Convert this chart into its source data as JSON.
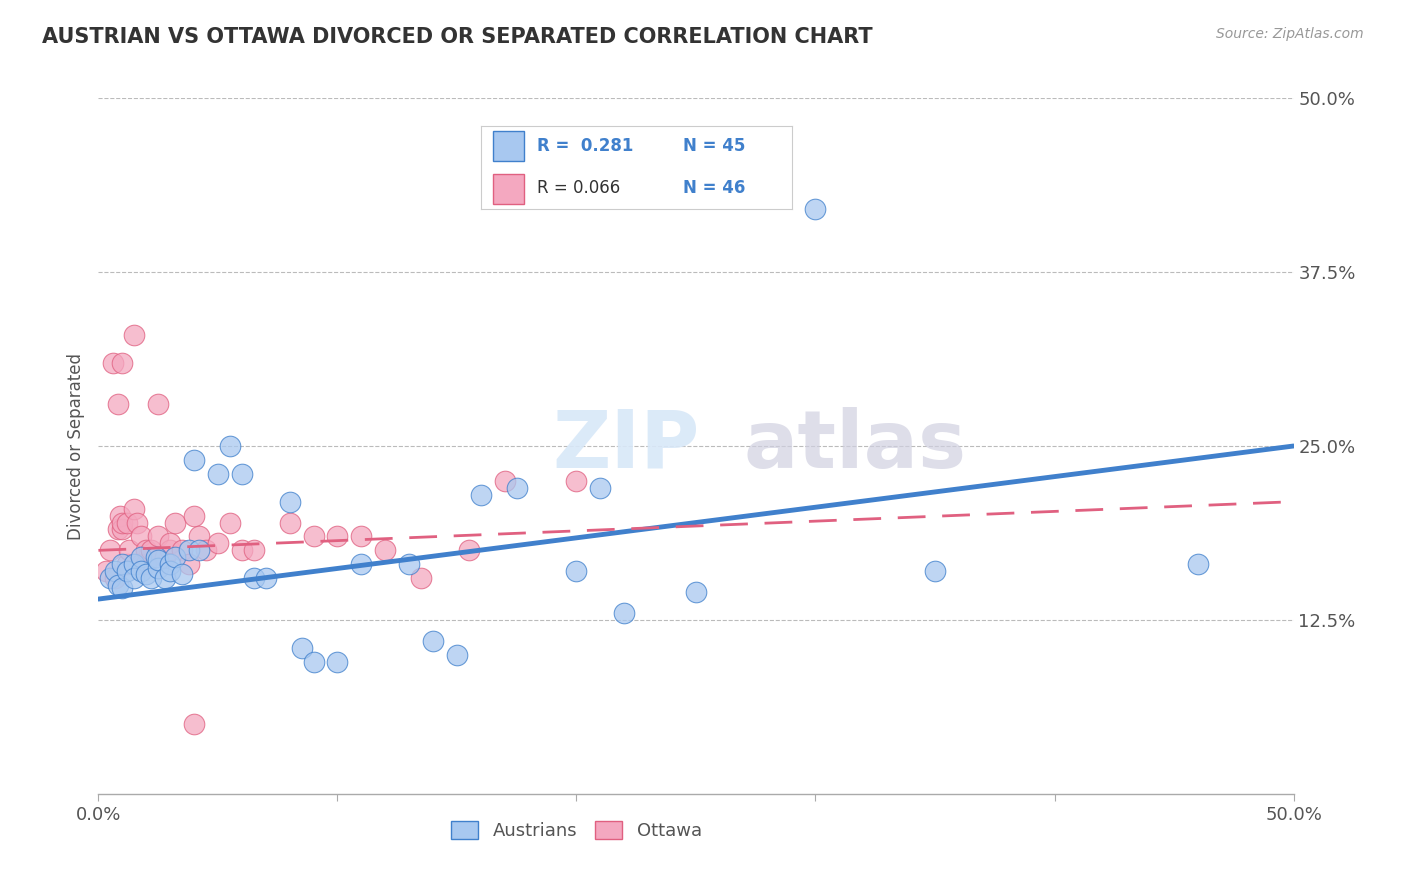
{
  "title": "AUSTRIAN VS OTTAWA DIVORCED OR SEPARATED CORRELATION CHART",
  "source": "Source: ZipAtlas.com",
  "ylabel": "Divorced or Separated",
  "xlim": [
    0.0,
    0.5
  ],
  "ylim": [
    0.0,
    0.5
  ],
  "yticks_right": [
    0.5,
    0.375,
    0.25,
    0.125,
    0.0
  ],
  "ytick_labels_right": [
    "50.0%",
    "37.5%",
    "25.0%",
    "12.5%",
    ""
  ],
  "legend_blue_r": "R =  0.281",
  "legend_blue_n": "N = 45",
  "legend_pink_r": "R = 0.066",
  "legend_pink_n": "N = 46",
  "blue_color": "#A8C8F0",
  "pink_color": "#F4A8C0",
  "trendline_blue_color": "#4080CC",
  "trendline_pink_color": "#E06080",
  "background_color": "#FFFFFF",
  "grid_color": "#BBBBBB",
  "austrians_x": [
    0.005,
    0.007,
    0.008,
    0.01,
    0.01,
    0.012,
    0.015,
    0.015,
    0.018,
    0.018,
    0.02,
    0.022,
    0.024,
    0.025,
    0.025,
    0.028,
    0.03,
    0.03,
    0.032,
    0.035,
    0.038,
    0.04,
    0.042,
    0.05,
    0.055,
    0.06,
    0.065,
    0.07,
    0.08,
    0.085,
    0.09,
    0.1,
    0.11,
    0.13,
    0.14,
    0.15,
    0.16,
    0.175,
    0.2,
    0.21,
    0.22,
    0.25,
    0.3,
    0.35,
    0.46
  ],
  "austrians_y": [
    0.155,
    0.16,
    0.15,
    0.148,
    0.165,
    0.16,
    0.165,
    0.155,
    0.17,
    0.16,
    0.158,
    0.155,
    0.17,
    0.162,
    0.168,
    0.155,
    0.165,
    0.16,
    0.17,
    0.158,
    0.175,
    0.24,
    0.175,
    0.23,
    0.25,
    0.23,
    0.155,
    0.155,
    0.21,
    0.105,
    0.095,
    0.095,
    0.165,
    0.165,
    0.11,
    0.1,
    0.215,
    0.22,
    0.16,
    0.22,
    0.13,
    0.145,
    0.42,
    0.16,
    0.165
  ],
  "ottawa_x": [
    0.003,
    0.005,
    0.006,
    0.007,
    0.008,
    0.008,
    0.009,
    0.01,
    0.01,
    0.01,
    0.012,
    0.012,
    0.013,
    0.015,
    0.015,
    0.016,
    0.018,
    0.018,
    0.02,
    0.02,
    0.022,
    0.025,
    0.025,
    0.028,
    0.03,
    0.03,
    0.032,
    0.035,
    0.038,
    0.04,
    0.042,
    0.045,
    0.05,
    0.055,
    0.06,
    0.065,
    0.08,
    0.09,
    0.1,
    0.11,
    0.12,
    0.135,
    0.155,
    0.17,
    0.2,
    0.04
  ],
  "ottawa_y": [
    0.16,
    0.175,
    0.31,
    0.155,
    0.19,
    0.28,
    0.2,
    0.19,
    0.195,
    0.31,
    0.165,
    0.195,
    0.175,
    0.205,
    0.33,
    0.195,
    0.165,
    0.185,
    0.165,
    0.175,
    0.175,
    0.185,
    0.28,
    0.17,
    0.175,
    0.18,
    0.195,
    0.175,
    0.165,
    0.2,
    0.185,
    0.175,
    0.18,
    0.195,
    0.175,
    0.175,
    0.195,
    0.185,
    0.185,
    0.185,
    0.175,
    0.155,
    0.175,
    0.225,
    0.225,
    0.05
  ]
}
